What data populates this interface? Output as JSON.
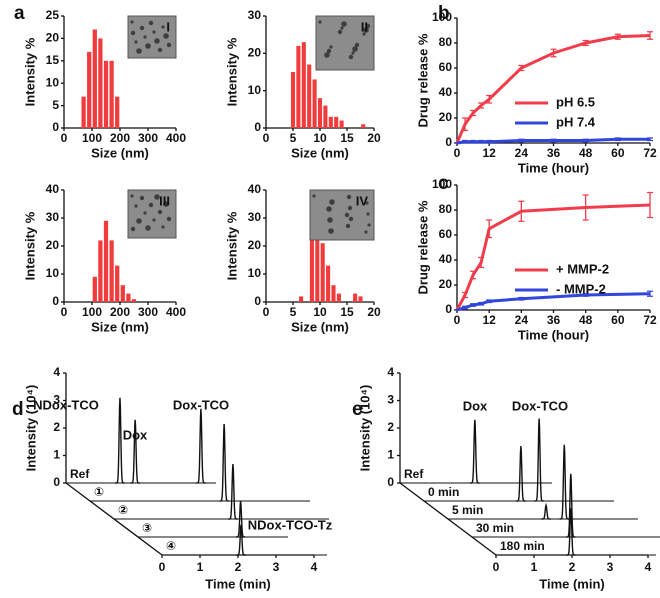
{
  "chart_data": [
    {
      "type": "histogram",
      "panel_label": "a",
      "inset_label": "I",
      "xlabel": "Size (nm)",
      "ylabel": "Intensity %",
      "color": "#f03c3c",
      "bins": [
        60,
        80,
        100,
        120,
        140,
        160,
        180,
        200
      ],
      "values": [
        7,
        17,
        22,
        20,
        15,
        15,
        7
      ],
      "xlim": [
        0,
        400
      ],
      "xticks": [
        0,
        100,
        200,
        300,
        400
      ],
      "ylim": [
        0,
        25
      ],
      "yticks": [
        0,
        5,
        10,
        15,
        20,
        25
      ]
    },
    {
      "type": "histogram",
      "inset_label": "II",
      "xlabel": "Size (nm)",
      "ylabel": "Intensity %",
      "color": "#f03c3c",
      "bins": [
        4.5,
        5.5,
        6.5,
        7.5,
        8.5,
        9.5,
        10.5,
        11.5,
        12.5,
        13.5,
        14.5,
        15.5,
        16.5,
        17.5,
        18.5
      ],
      "values": [
        15,
        22,
        23,
        17,
        13,
        8,
        6,
        3,
        3,
        2,
        0,
        0,
        0,
        1
      ],
      "xlim": [
        0,
        20
      ],
      "xticks": [
        0,
        5,
        10,
        15,
        20
      ],
      "ylim": [
        0,
        30
      ],
      "yticks": [
        0,
        10,
        20,
        30
      ]
    },
    {
      "type": "histogram",
      "inset_label": "III",
      "xlabel": "Size (nm)",
      "ylabel": "Intensity %",
      "color": "#f03c3c",
      "bins": [
        100,
        120,
        140,
        160,
        180,
        200,
        220,
        240,
        260
      ],
      "values": [
        9,
        22,
        29,
        22,
        13,
        6,
        3,
        1
      ],
      "xlim": [
        0,
        400
      ],
      "xticks": [
        0,
        100,
        200,
        300,
        400
      ],
      "ylim": [
        0,
        40
      ],
      "yticks": [
        0,
        10,
        20,
        30,
        40
      ]
    },
    {
      "type": "histogram",
      "inset_label": "IV",
      "xlabel": "Size (nm)",
      "ylabel": "Intensity %",
      "color": "#f03c3c",
      "bins": [
        6,
        7,
        8,
        9,
        10,
        11,
        12,
        13,
        14,
        15,
        16,
        17,
        18
      ],
      "values": [
        2,
        0,
        25,
        31,
        21,
        13,
        6,
        3,
        0,
        0,
        3,
        2
      ],
      "xlim": [
        0,
        20
      ],
      "xticks": [
        0,
        5,
        10,
        15,
        20
      ],
      "ylim": [
        0,
        40
      ],
      "yticks": [
        0,
        10,
        20,
        30,
        40
      ]
    },
    {
      "type": "line",
      "panel_label": "b",
      "xlabel": "Time (hour)",
      "ylabel": "Drug release %",
      "x": [
        0,
        3,
        6,
        9,
        12,
        24,
        36,
        48,
        60,
        72
      ],
      "series": [
        {
          "name": "pH 6.5",
          "color": "#f03c4b",
          "values": [
            0,
            15,
            24,
            30,
            35,
            60,
            72,
            80,
            85,
            86
          ],
          "errors": [
            0,
            5,
            2,
            2,
            3,
            2,
            3,
            2,
            2,
            3
          ]
        },
        {
          "name": "pH 7.4",
          "color": "#3246dc",
          "values": [
            0,
            1,
            1,
            1,
            1,
            2,
            2,
            2,
            3,
            3
          ],
          "errors": [
            0,
            1,
            1,
            1,
            1,
            1,
            1,
            1,
            1,
            1
          ]
        }
      ],
      "xlim": [
        0,
        72
      ],
      "xticks": [
        0,
        12,
        24,
        36,
        48,
        60,
        72
      ],
      "ylim": [
        0,
        100
      ],
      "yticks": [
        0,
        20,
        40,
        60,
        80,
        100
      ]
    },
    {
      "type": "line",
      "panel_label": "c",
      "xlabel": "Time (hour)",
      "ylabel": "Drug release %",
      "x": [
        0,
        3,
        6,
        9,
        12,
        24,
        48,
        72
      ],
      "series": [
        {
          "name": "+ MMP-2",
          "color": "#f03c4b",
          "values": [
            0,
            12,
            28,
            38,
            65,
            79,
            82,
            84
          ],
          "errors": [
            0,
            2,
            3,
            4,
            7,
            8,
            10,
            10
          ]
        },
        {
          "name": "- MMP-2",
          "color": "#3246dc",
          "values": [
            0,
            2,
            4,
            5,
            7,
            9,
            12,
            13
          ],
          "errors": [
            0,
            1,
            1,
            1,
            1,
            1,
            1,
            2
          ]
        }
      ],
      "xlim": [
        0,
        72
      ],
      "xticks": [
        0,
        12,
        24,
        36,
        48,
        60,
        72
      ],
      "ylim": [
        0,
        100
      ],
      "yticks": [
        0,
        20,
        40,
        60,
        80,
        100
      ]
    },
    {
      "type": "chromatogram",
      "panel_label": "d",
      "xlabel": "Time (min)",
      "ylabel": "Intensity (10⁴)",
      "annotations": [
        "NDox-TCO",
        "Dox",
        "Dox-TCO",
        "NDox-TCO-Tz"
      ],
      "series": [
        {
          "name": "Ref",
          "x": [
            1.42,
            1.82,
            3.55
          ],
          "values": [
            3.1,
            2.3,
            2.7
          ]
        },
        {
          "name": "①",
          "x": [
            3.53
          ],
          "values": [
            2.8
          ]
        },
        {
          "name": "②",
          "x": [
            3.13
          ],
          "values": [
            2.0
          ]
        },
        {
          "name": "③",
          "x": [
            2.7
          ],
          "values": [
            1.3
          ]
        },
        {
          "name": "④",
          "x": [
            2.08
          ],
          "values": [
            1.1
          ]
        }
      ],
      "xlim": [
        0,
        4
      ],
      "xticks": [
        0,
        1,
        2,
        3,
        4
      ],
      "ylim": [
        0,
        4
      ],
      "yticks": [
        0,
        1,
        2,
        3,
        4
      ]
    },
    {
      "type": "chromatogram",
      "panel_label": "e",
      "xlabel": "Time (min)",
      "ylabel": "Intensity (10⁴)",
      "annotations": [
        "Dox",
        "Dox-TCO"
      ],
      "series": [
        {
          "name": "Ref",
          "x": [
            1.97
          ],
          "values": [
            2.3
          ]
        },
        {
          "name": "0 min",
          "x": [
            2.55,
            3.03
          ],
          "values": [
            2.0,
            3.0
          ]
        },
        {
          "name": "5 min",
          "x": [
            2.58,
            3.06
          ],
          "values": [
            0.5,
            2.7
          ]
        },
        {
          "name": "30 min",
          "x": [
            2.6
          ],
          "values": [
            2.3
          ]
        },
        {
          "name": "180 min",
          "x": [
            1.97
          ],
          "values": [
            1.7
          ]
        }
      ],
      "xlim": [
        0,
        4
      ],
      "xticks": [
        0,
        1,
        2,
        3,
        4
      ],
      "ylim": [
        0,
        4
      ],
      "yticks": [
        0,
        1,
        2,
        3,
        4
      ]
    }
  ]
}
